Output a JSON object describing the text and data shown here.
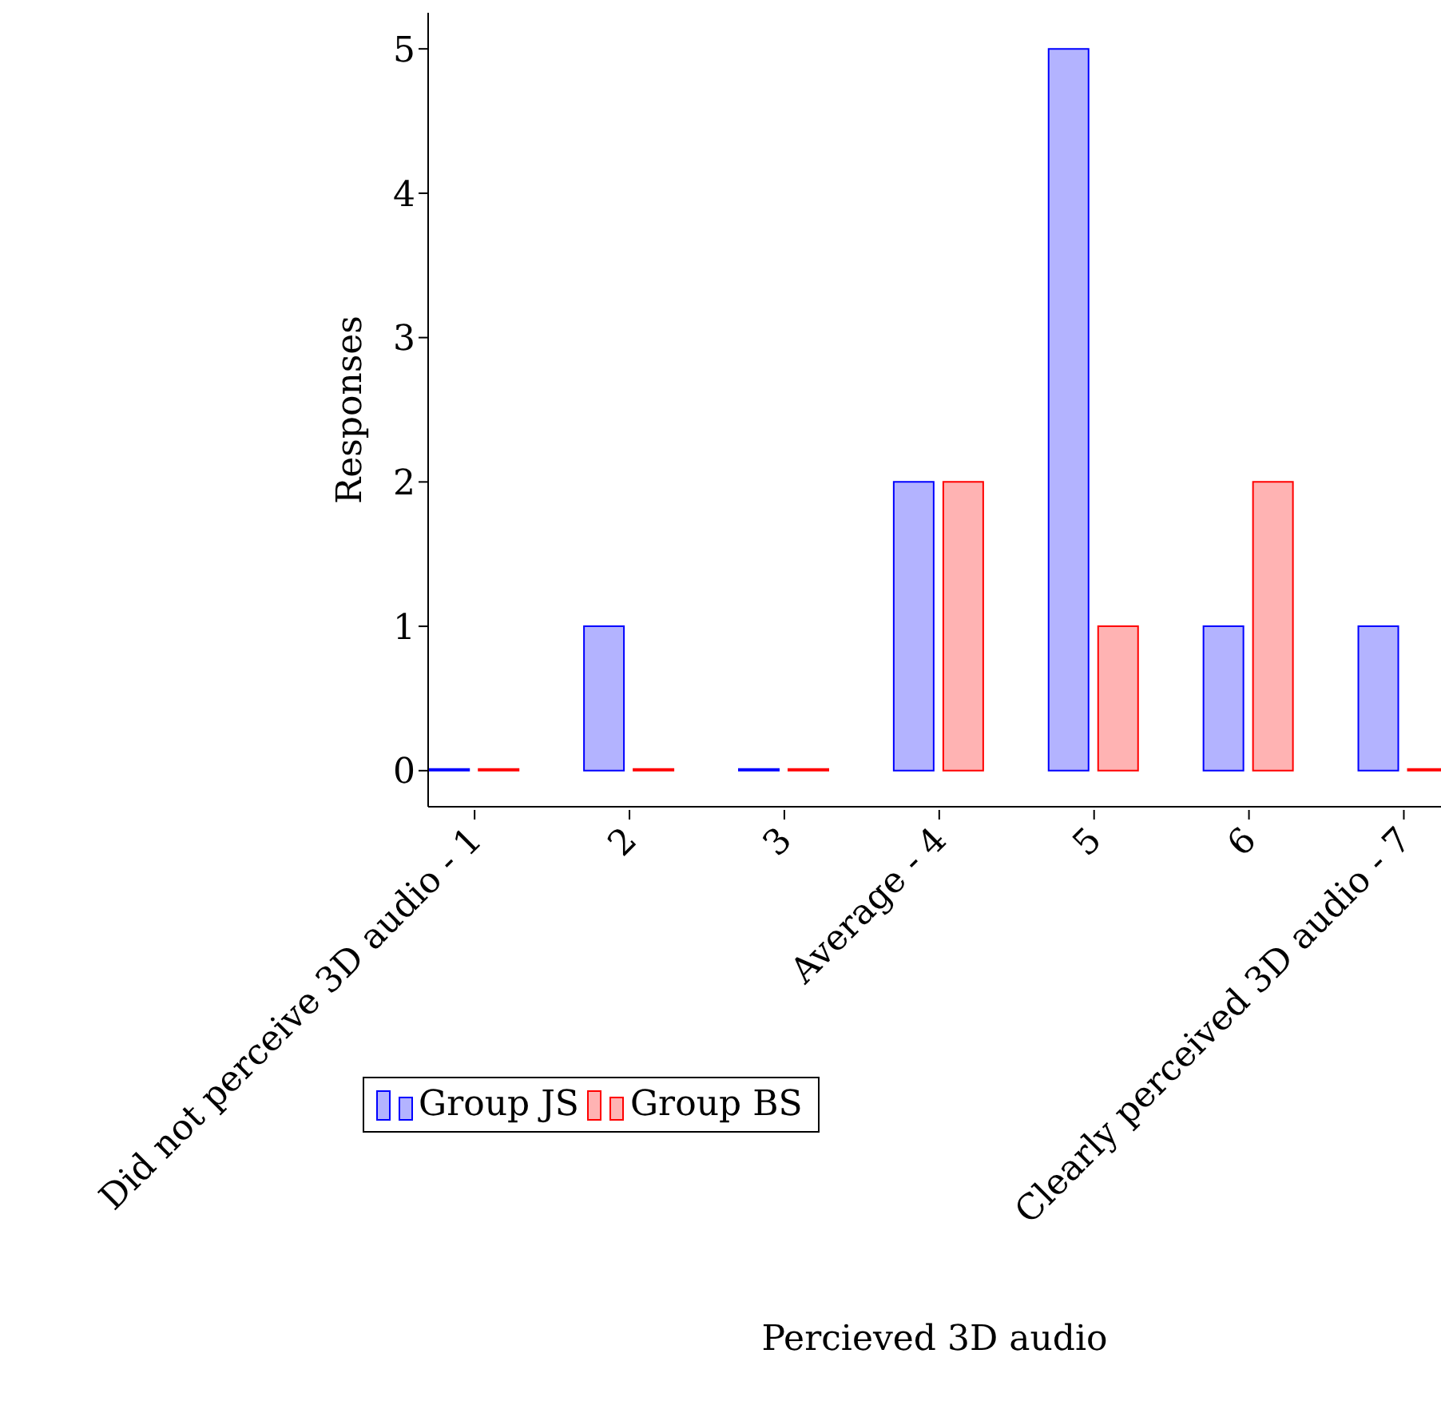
{
  "chart_data": {
    "type": "bar",
    "xlabel": "Percieved 3D audio",
    "ylabel": "Responses",
    "categories": [
      "Did not perceive 3D audio - 1",
      "2",
      "3",
      "Average - 4",
      "5",
      "6",
      "Clearly perceived 3D audio - 7"
    ],
    "series": [
      {
        "name": "Group JS",
        "color": "#b3b3ff",
        "values": [
          0,
          1,
          0,
          2,
          5,
          1,
          1
        ]
      },
      {
        "name": "Group BS",
        "color": "#ffb3b3",
        "values": [
          0,
          0,
          0,
          2,
          1,
          2,
          0
        ]
      }
    ],
    "ylim": [
      -0.25,
      5.25
    ],
    "yticks": [
      0,
      1,
      2,
      3,
      4,
      5
    ],
    "grid": false,
    "legend": "bottom"
  }
}
